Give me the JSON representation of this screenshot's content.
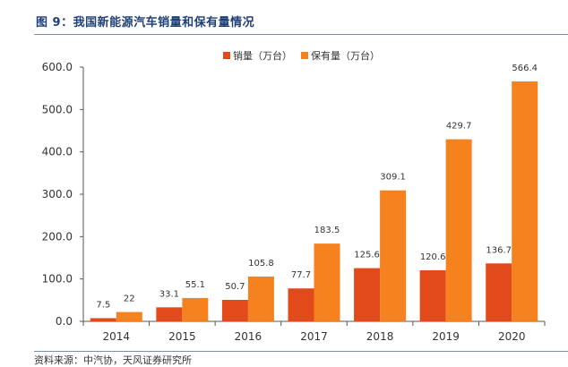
{
  "title": "图 9：我国新能源汽车销量和保有量情况",
  "source": "资料来源：中汽协，天风证券研究所",
  "chart_data": {
    "type": "bar",
    "categories": [
      "2014",
      "2015",
      "2016",
      "2017",
      "2018",
      "2019",
      "2020"
    ],
    "series": [
      {
        "name": "销量（万台）",
        "color": "#e24a1b",
        "values": [
          7.5,
          33.1,
          50.7,
          77.7,
          125.6,
          120.6,
          136.7
        ],
        "labels": [
          "7.5",
          "33.1",
          "50.7",
          "77.7",
          "125.6",
          "120.6",
          "136.7"
        ]
      },
      {
        "name": "保有量（万台）",
        "color": "#f5821f",
        "values": [
          22,
          55.1,
          105.8,
          183.5,
          309.1,
          429.7,
          566.4
        ],
        "labels": [
          "22",
          "55.1",
          "105.8",
          "183.5",
          "309.1",
          "429.7",
          "566.4"
        ]
      }
    ],
    "ylim": [
      0,
      600
    ],
    "yticks": [
      "0.0",
      "100.0",
      "200.0",
      "300.0",
      "400.0",
      "500.0",
      "600.0"
    ],
    "legend_position": "top-right",
    "grid": false
  }
}
